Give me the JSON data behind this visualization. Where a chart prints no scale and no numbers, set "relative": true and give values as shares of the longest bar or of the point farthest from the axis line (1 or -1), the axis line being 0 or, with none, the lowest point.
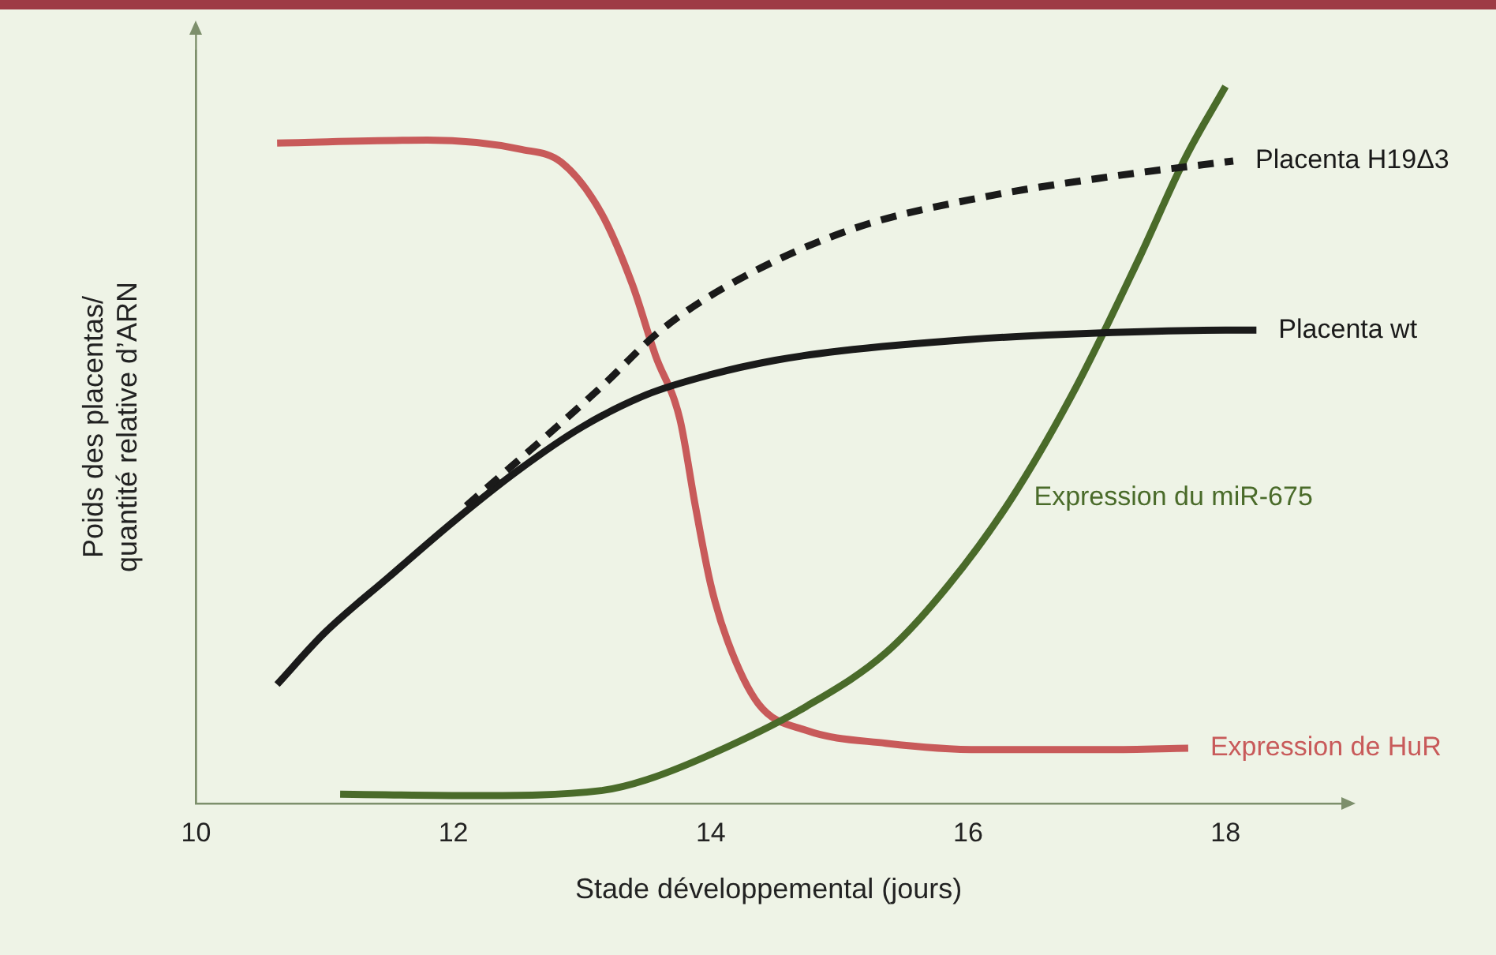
{
  "chart_data": {
    "type": "line",
    "relative": true,
    "xlabel": "Stade développemental (jours)",
    "ylabel": "Poids des placentas/\nquantité relative d’ARN",
    "xlim": [
      10,
      18.9
    ],
    "xticks": [
      10,
      12,
      14,
      16,
      18
    ],
    "grid": false,
    "legend": false,
    "marker": "none",
    "line_style": "solid",
    "series": [
      {
        "name": "Placenta H19Δ3",
        "color": "#1a1a1a",
        "line_style": "dashed",
        "x": [
          12.1,
          13.15,
          13.6,
          14.15,
          15.1,
          16.1,
          17.1,
          18.06
        ],
        "values": [
          0.415,
          0.581,
          0.658,
          0.724,
          0.801,
          0.845,
          0.874,
          0.896
        ]
      },
      {
        "name": "Placenta wt",
        "color": "#1a1a1a",
        "x": [
          10.63,
          11,
          11.5,
          12,
          12.5,
          13,
          13.5,
          14,
          14.5,
          15,
          16,
          17,
          18,
          18.24
        ],
        "values": [
          0.166,
          0.238,
          0.316,
          0.393,
          0.464,
          0.525,
          0.57,
          0.598,
          0.618,
          0.631,
          0.647,
          0.656,
          0.66,
          0.66
        ]
      },
      {
        "name": "Expression du miR-675",
        "color": "#4a6b2a",
        "x": [
          11.12,
          12.16,
          13.15,
          13.5,
          14.13,
          14.74,
          15.36,
          15.85,
          16.34,
          16.84,
          17.32,
          17.69,
          18.0
        ],
        "values": [
          0.013,
          0.011,
          0.018,
          0.033,
          0.079,
          0.135,
          0.21,
          0.305,
          0.426,
          0.581,
          0.757,
          0.901,
          1
        ]
      },
      {
        "name": "Expression de HuR",
        "color": "#c85a5a",
        "x": [
          10.63,
          11.8,
          12.53,
          12.84,
          13.15,
          13.39,
          13.57,
          13.76,
          13.88,
          14.0,
          14.13,
          14.37,
          14.74,
          15.36,
          16.1,
          17.08,
          17.71
        ],
        "values": [
          0.921,
          0.925,
          0.912,
          0.894,
          0.823,
          0.724,
          0.625,
          0.536,
          0.415,
          0.305,
          0.227,
          0.139,
          0.102,
          0.084,
          0.075,
          0.075,
          0.077
        ]
      }
    ]
  }
}
